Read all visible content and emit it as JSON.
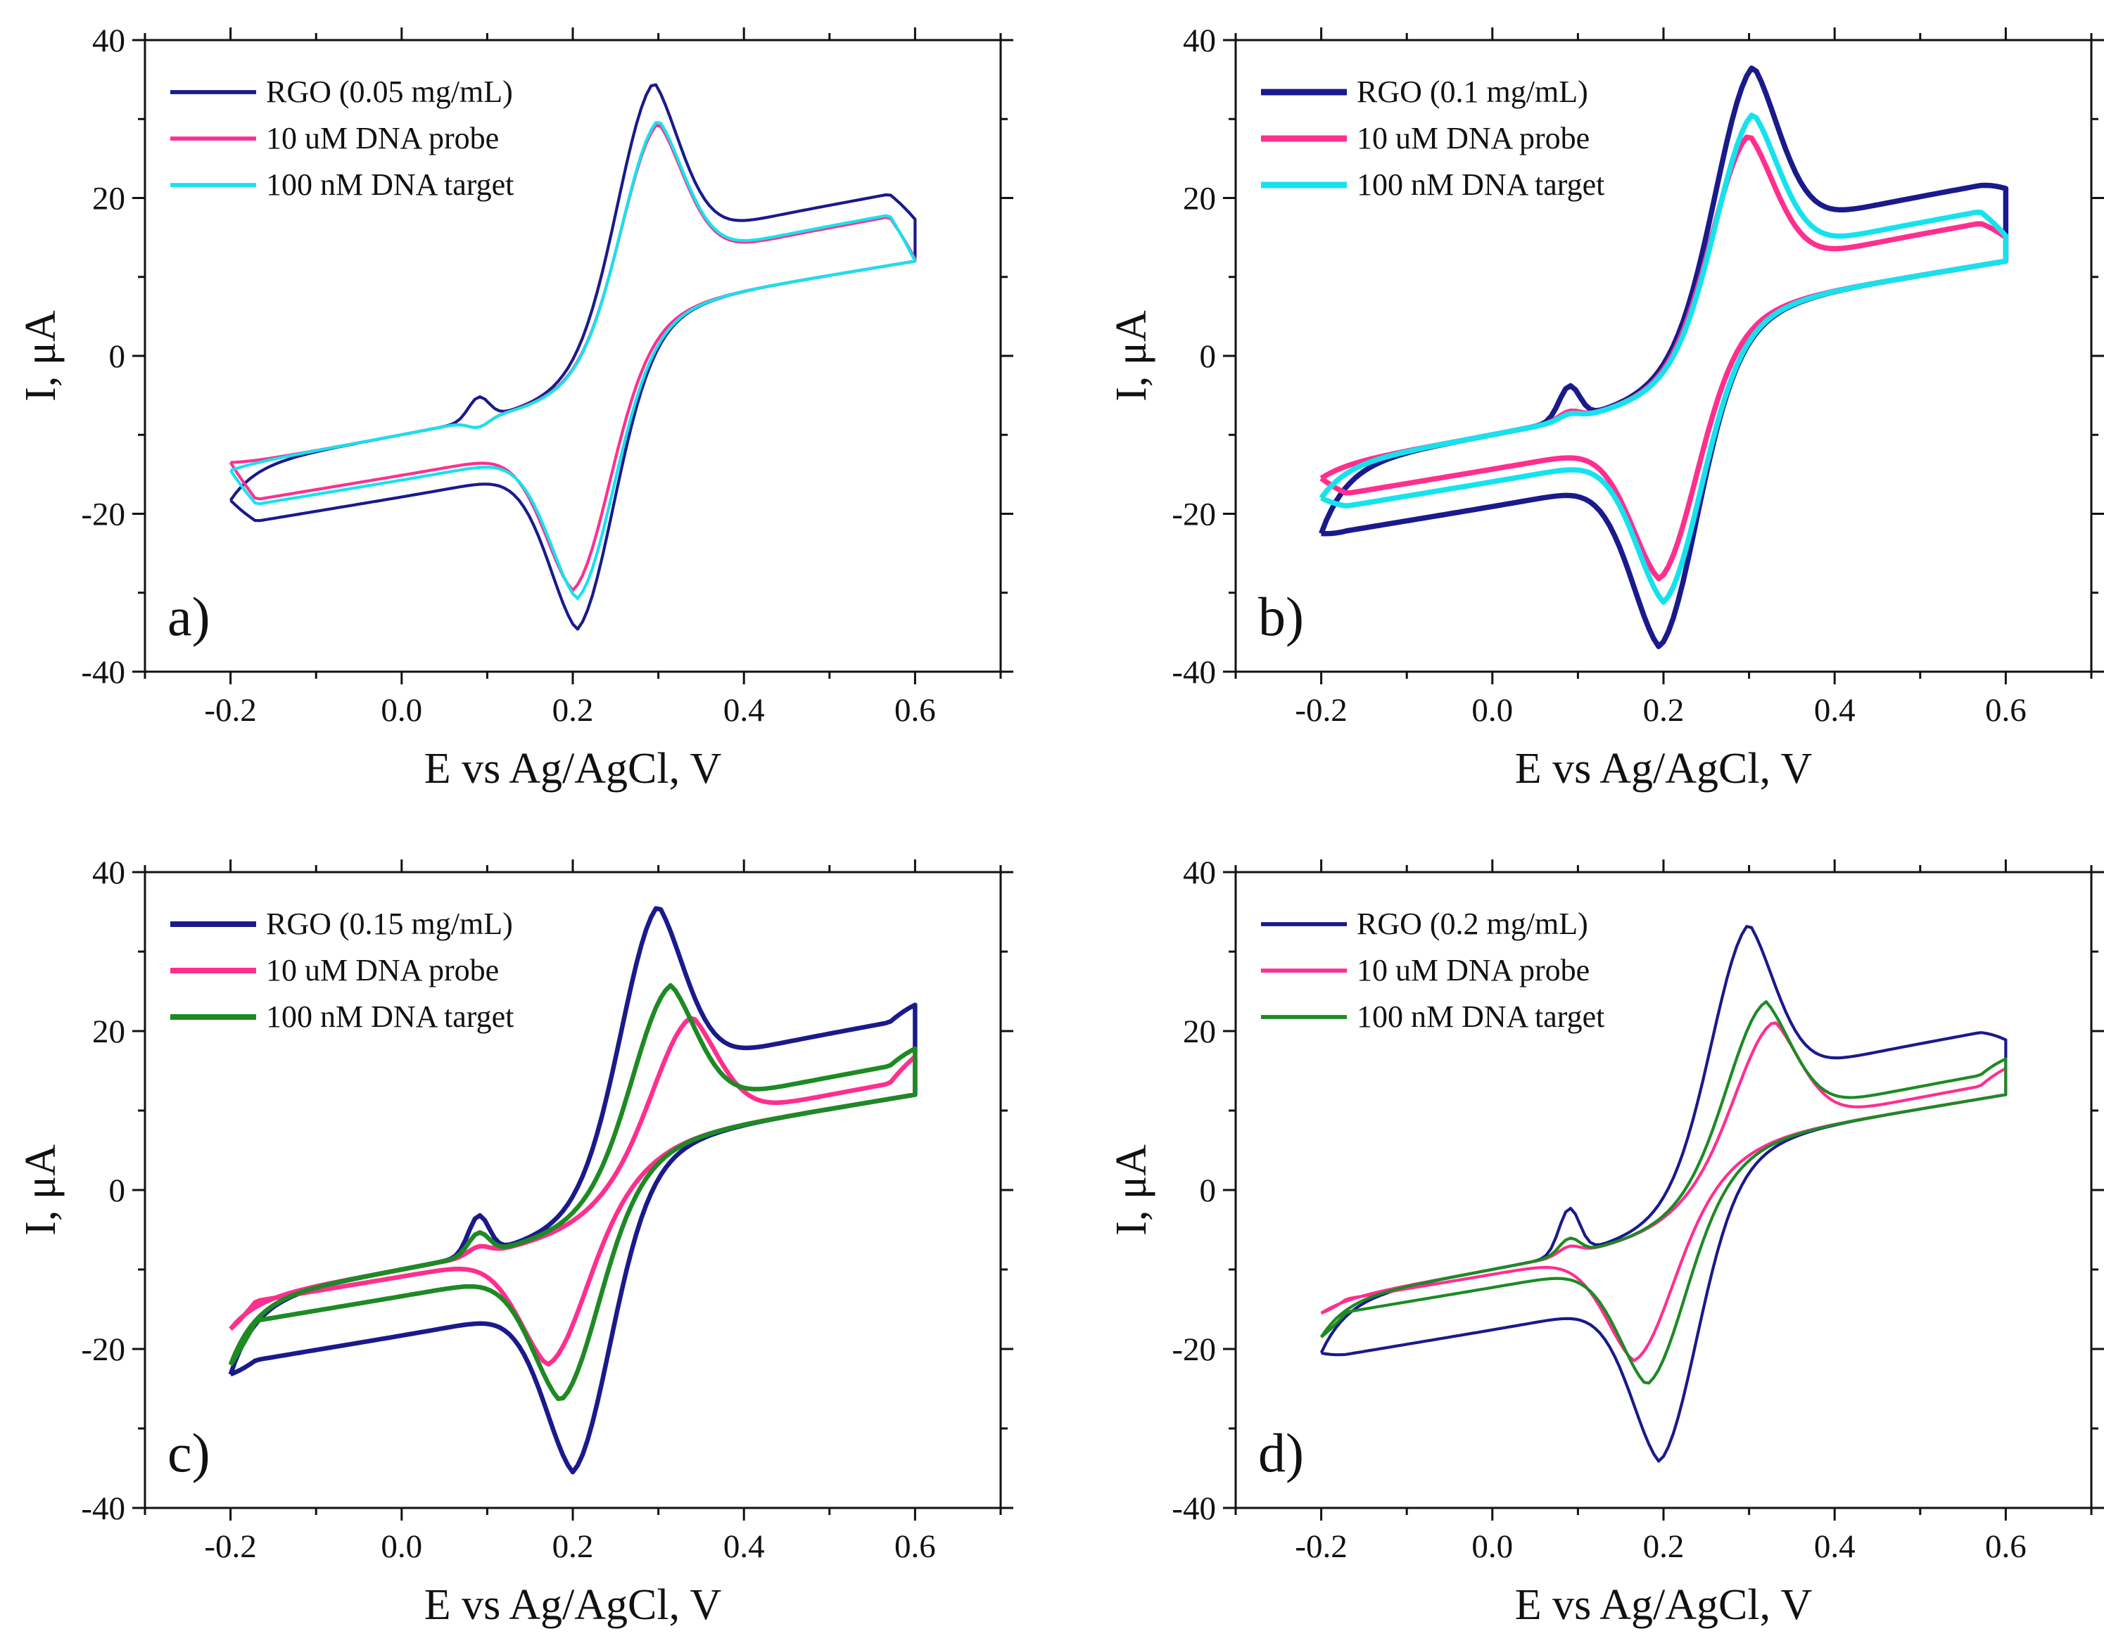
{
  "figure": {
    "background": "#ffffff"
  },
  "chart_data": [
    {
      "type": "line",
      "panel_label": "a)",
      "xlabel": "E vs Ag/AgCl, V",
      "ylabel": "I, μA",
      "xlim": [
        -0.3,
        0.7
      ],
      "ylim": [
        -40,
        40
      ],
      "xticks": [
        "-0.2",
        "0.0",
        "0.2",
        "0.4",
        "0.6"
      ],
      "yticks": [
        "-40",
        "-20",
        "0",
        "20",
        "40"
      ],
      "legend_position": "top-left",
      "grid": false,
      "series": [
        {
          "name": "RGO (0.05 mg/mL)",
          "color": "#1a1a8c",
          "peaks": {
            "ipa": 34.7,
            "epa": 0.295,
            "ipc": -34.7,
            "epc": 0.205
          },
          "start_current": -18.3,
          "end_current": 17.3,
          "side_peak": -1.7
        },
        {
          "name": "10 uM DNA probe",
          "color": "#ff2f8e",
          "peaks": {
            "ipa": 29.5,
            "epa": 0.3,
            "ipc": -29.7,
            "epc": 0.2
          },
          "start_current": -13.5,
          "end_current": 12.3,
          "side_peak": -5.5
        },
        {
          "name": "100 nM DNA target",
          "color": "#16e2ee",
          "peaks": {
            "ipa": 29.9,
            "epa": 0.3,
            "ipc": -30.8,
            "epc": 0.205
          },
          "start_current": -14.5,
          "end_current": 12.0,
          "side_peak": -5.5
        }
      ]
    },
    {
      "type": "line",
      "panel_label": "b)",
      "xlabel": "E vs Ag/AgCl, V",
      "ylabel": "I, μA",
      "xlim": [
        -0.3,
        0.7
      ],
      "ylim": [
        -40,
        40
      ],
      "xticks": [
        "-0.2",
        "0.0",
        "0.2",
        "0.4",
        "0.6"
      ],
      "yticks": [
        "-40",
        "-20",
        "0",
        "20",
        "40"
      ],
      "legend_position": "top-left",
      "grid": false,
      "series": [
        {
          "name": "RGO (0.1 mg/mL)",
          "color": "#1a1a8c",
          "peaks": {
            "ipa": 36.7,
            "epa": 0.305,
            "ipc": -36.9,
            "epc": 0.195
          },
          "start_current": -22.5,
          "end_current": 21.2,
          "side_peak": -0.3
        },
        {
          "name": "10 uM DNA probe",
          "color": "#ff2f8e",
          "peaks": {
            "ipa": 28.0,
            "epa": 0.3,
            "ipc": -28.3,
            "epc": 0.195
          },
          "start_current": -15.5,
          "end_current": 15.0,
          "side_peak": -3.5
        },
        {
          "name": "100 nM DNA target",
          "color": "#16e2ee",
          "peaks": {
            "ipa": 30.7,
            "epa": 0.305,
            "ipc": -31.2,
            "epc": 0.2
          },
          "start_current": -18.0,
          "end_current": 15.2,
          "side_peak": -3.8
        }
      ]
    },
    {
      "type": "line",
      "panel_label": "c)",
      "xlabel": "E vs Ag/AgCl, V",
      "ylabel": "I, μA",
      "xlim": [
        -0.3,
        0.7
      ],
      "ylim": [
        -40,
        40
      ],
      "xticks": [
        "-0.2",
        "0.0",
        "0.2",
        "0.4",
        "0.6"
      ],
      "yticks": [
        "-40",
        "-20",
        "0",
        "20",
        "40"
      ],
      "legend_position": "top-left",
      "grid": false,
      "series": [
        {
          "name": "RGO (0.15 mg/mL)",
          "color": "#1a1a8c",
          "peaks": {
            "ipa": 35.8,
            "epa": 0.3,
            "ipc": -35.5,
            "epc": 0.2
          },
          "start_current": -23.2,
          "end_current": 23.3,
          "side_peak": 0.3
        },
        {
          "name": "10 uM DNA probe",
          "color": "#ff2f8e",
          "peaks": {
            "ipa": 21.8,
            "epa": 0.34,
            "ipc": -22.0,
            "epc": 0.17
          },
          "start_current": -17.5,
          "end_current": 16.8,
          "side_peak": -3.5
        },
        {
          "name": "100 nM DNA target",
          "color": "#1d8a24",
          "peaks": {
            "ipa": 25.8,
            "epa": 0.315,
            "ipc": -26.5,
            "epc": 0.185
          },
          "start_current": -22.0,
          "end_current": 17.8,
          "side_peak": -1.8
        }
      ]
    },
    {
      "type": "line",
      "panel_label": "d)",
      "xlabel": "E vs Ag/AgCl, V",
      "ylabel": "I, μA",
      "xlim": [
        -0.3,
        0.7
      ],
      "ylim": [
        -40,
        40
      ],
      "xticks": [
        "-0.2",
        "0.0",
        "0.2",
        "0.4",
        "0.6"
      ],
      "yticks": [
        "-40",
        "-20",
        "0",
        "20",
        "40"
      ],
      "legend_position": "top-left",
      "grid": false,
      "series": [
        {
          "name": "RGO (0.2 mg/mL)",
          "color": "#1a1a8c",
          "peaks": {
            "ipa": 33.5,
            "epa": 0.3,
            "ipc": -34.2,
            "epc": 0.195
          },
          "start_current": -20.5,
          "end_current": 18.9,
          "side_peak": 1.2
        },
        {
          "name": "10 uM DNA probe",
          "color": "#ff2f8e",
          "peaks": {
            "ipa": 21.2,
            "epa": 0.33,
            "ipc": -21.5,
            "epc": 0.165
          },
          "start_current": -15.5,
          "end_current": 15.3,
          "side_peak": -3.5
        },
        {
          "name": "100 nM DNA target",
          "color": "#1d8a24",
          "peaks": {
            "ipa": 23.7,
            "epa": 0.32,
            "ipc": -24.5,
            "epc": 0.18
          },
          "start_current": -18.5,
          "end_current": 16.5,
          "side_peak": -2.5
        }
      ]
    }
  ]
}
